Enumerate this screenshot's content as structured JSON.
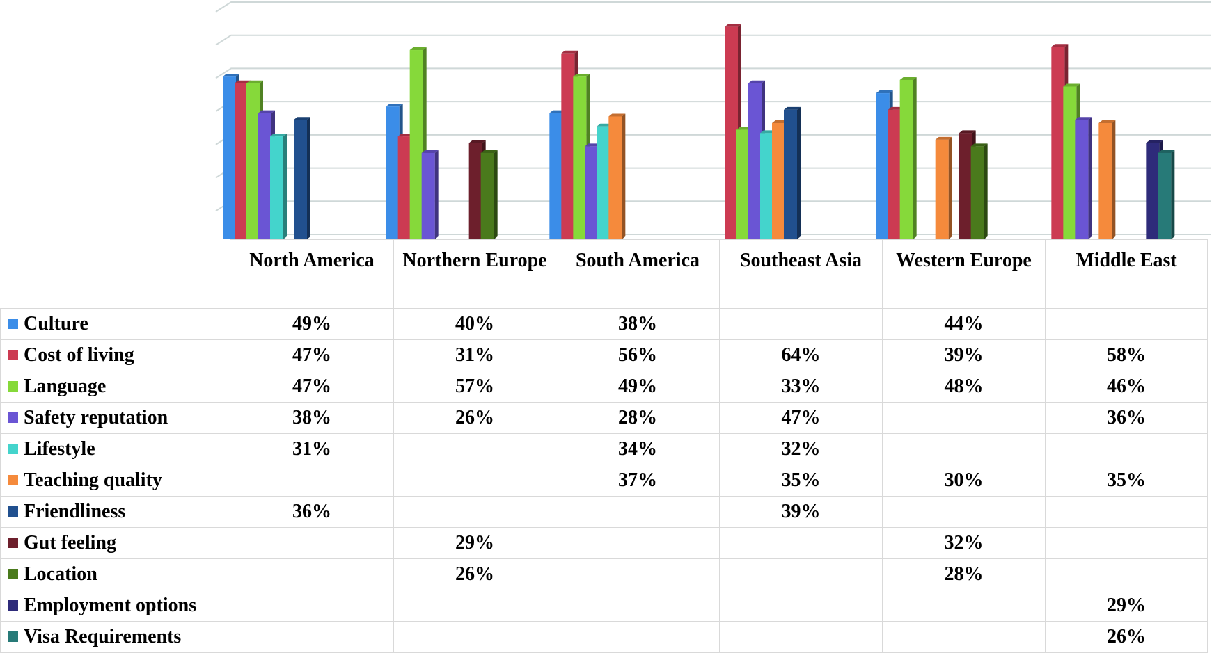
{
  "chart_data": {
    "type": "bar",
    "title": "",
    "xlabel": "",
    "ylabel": "",
    "ylim": [
      0,
      70
    ],
    "grid": true,
    "legend": "data-table-left",
    "categories": [
      "North America",
      "Northern Europe",
      "South America",
      "Southeast Asia",
      "Western Europe",
      "Middle East"
    ],
    "series": [
      {
        "name": "Culture",
        "color": "#3b8de8",
        "values": [
          49,
          40,
          38,
          null,
          44,
          null
        ],
        "labels": [
          "49%",
          "40%",
          "38%",
          "",
          "44%",
          ""
        ]
      },
      {
        "name": "Cost of living",
        "color": "#cc3b52",
        "values": [
          47,
          31,
          56,
          64,
          39,
          58
        ],
        "labels": [
          "47%",
          "31%",
          "56%",
          "64%",
          "39%",
          "58%"
        ]
      },
      {
        "name": "Language",
        "color": "#86d93a",
        "values": [
          47,
          57,
          49,
          33,
          48,
          46
        ],
        "labels": [
          "47%",
          "57%",
          "49%",
          "33%",
          "48%",
          "46%"
        ]
      },
      {
        "name": "Safety reputation",
        "color": "#6a55d4",
        "values": [
          38,
          26,
          28,
          47,
          null,
          36
        ],
        "labels": [
          "38%",
          "26%",
          "28%",
          "47%",
          "",
          "36%"
        ]
      },
      {
        "name": "Lifestyle",
        "color": "#44d4cc",
        "values": [
          31,
          null,
          34,
          32,
          null,
          null
        ],
        "labels": [
          "31%",
          "",
          "34%",
          "32%",
          "",
          ""
        ]
      },
      {
        "name": "Teaching quality",
        "color": "#f58a3c",
        "values": [
          null,
          null,
          37,
          35,
          30,
          35
        ],
        "labels": [
          "",
          "",
          "37%",
          "35%",
          "30%",
          "35%"
        ]
      },
      {
        "name": "Friendliness",
        "color": "#21508f",
        "values": [
          36,
          null,
          null,
          39,
          null,
          null
        ],
        "labels": [
          "36%",
          "",
          "",
          "39%",
          "",
          ""
        ]
      },
      {
        "name": "Gut feeling",
        "color": "#6d1f2c",
        "values": [
          null,
          29,
          null,
          null,
          32,
          null
        ],
        "labels": [
          "",
          "29%",
          "",
          "",
          "32%",
          ""
        ]
      },
      {
        "name": "Location",
        "color": "#4a7a1c",
        "values": [
          null,
          26,
          null,
          null,
          28,
          null
        ],
        "labels": [
          "",
          "26%",
          "",
          "",
          "28%",
          ""
        ]
      },
      {
        "name": "Employment options",
        "color": "#2e2b7a",
        "values": [
          null,
          null,
          null,
          null,
          null,
          29
        ],
        "labels": [
          "",
          "",
          "",
          "",
          "",
          "29%"
        ]
      },
      {
        "name": "Visa Requirements",
        "color": "#277a78",
        "values": [
          null,
          null,
          null,
          null,
          null,
          26
        ],
        "labels": [
          "",
          "",
          "",
          "",
          "",
          "26%"
        ]
      }
    ]
  }
}
